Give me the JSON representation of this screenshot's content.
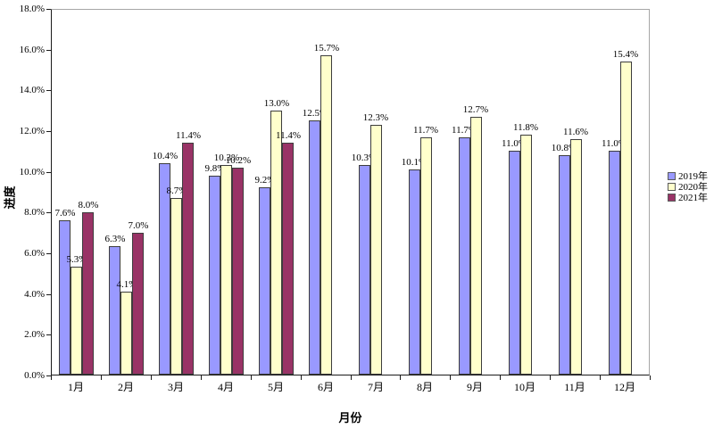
{
  "chart_data": {
    "type": "bar",
    "title": "",
    "xlabel": "月份",
    "ylabel": "进度",
    "categories": [
      "1月",
      "2月",
      "3月",
      "4月",
      "5月",
      "6月",
      "7月",
      "8月",
      "9月",
      "10月",
      "11月",
      "12月"
    ],
    "series": [
      {
        "name": "2019年",
        "color": "#9999FF",
        "values": [
          7.6,
          6.3,
          10.4,
          9.8,
          9.2,
          12.5,
          10.3,
          10.1,
          11.7,
          11.0,
          10.8,
          11.0
        ]
      },
      {
        "name": "2020年",
        "color": "#FFFFCC",
        "values": [
          5.3,
          4.1,
          8.7,
          10.3,
          13.0,
          15.7,
          12.3,
          11.7,
          12.7,
          11.8,
          11.6,
          15.4
        ]
      },
      {
        "name": "2021年",
        "color": "#993366",
        "values": [
          8.0,
          7.0,
          11.4,
          10.2,
          11.4,
          null,
          null,
          null,
          null,
          null,
          null,
          null
        ]
      }
    ],
    "ylim": [
      0,
      18
    ],
    "ytick_step": 2,
    "ytick_labels": [
      "0.0%",
      "2.0%",
      "4.0%",
      "6.0%",
      "8.0%",
      "10.0%",
      "12.0%",
      "14.0%",
      "16.0%",
      "18.0%"
    ],
    "data_label_format": "0.0%",
    "data_labels_visible": true,
    "grid": false,
    "legend_position": "right",
    "background": "#FFFFFF",
    "bar_border_color": "#3D3D3D",
    "axis_color": "#1A1A1A",
    "plot_border_color": "#A6A6A6"
  }
}
